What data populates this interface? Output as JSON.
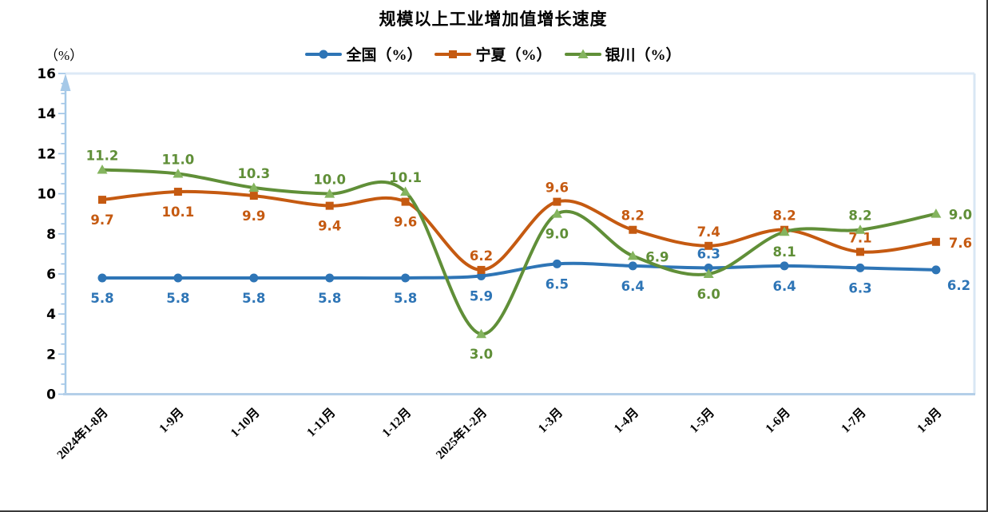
{
  "chart_data": {
    "type": "line",
    "title": "规模以上工业增加值增长速度",
    "legend_position": "top",
    "grid": false,
    "smooth_lines": true,
    "axis_color": "#9DC3E6",
    "plot_border_color": "#DDE9F6",
    "categories": [
      "2024年1-8月",
      "1-9月",
      "1-10月",
      "1-11月",
      "1-12月",
      "2025年1-2月",
      "1-3月",
      "1-4月",
      "1-5月",
      "1-6月",
      "1-7月",
      "1-8月"
    ],
    "y_axis": {
      "unit_label": "（%）",
      "min": 0,
      "max": 16,
      "major_step": 2,
      "minor_step": 0.5,
      "tick_labels": [
        "0",
        "2",
        "4",
        "6",
        "8",
        "10",
        "12",
        "14",
        "16"
      ]
    },
    "series": [
      {
        "name": "全国（%）",
        "color": "#2E75B6",
        "marker": "circle",
        "marker_color": "#2E75B6",
        "values": [
          5.8,
          5.8,
          5.8,
          5.8,
          5.8,
          5.9,
          6.5,
          6.4,
          6.3,
          6.4,
          6.3,
          6.2
        ],
        "label_positions": [
          "below",
          "below",
          "below",
          "below",
          "below",
          "below",
          "below",
          "below",
          "above",
          "below",
          "below",
          "below-right"
        ]
      },
      {
        "name": "宁夏（%）",
        "color": "#C55A11",
        "marker": "square",
        "marker_color": "#C55A11",
        "values": [
          9.7,
          10.1,
          9.9,
          9.4,
          9.6,
          6.2,
          9.6,
          8.2,
          7.4,
          8.2,
          7.1,
          7.6
        ],
        "label_positions": [
          "below",
          "below",
          "below",
          "below",
          "below",
          "above",
          "above",
          "above",
          "above",
          "above",
          "above",
          "right"
        ]
      },
      {
        "name": "银川（%）",
        "color": "#608F38",
        "marker": "triangle",
        "marker_color": "#84B45E",
        "values": [
          11.2,
          11.0,
          10.3,
          10.0,
          10.1,
          3.0,
          9.0,
          6.9,
          6.0,
          8.1,
          8.2,
          9.0
        ],
        "label_positions": [
          "above",
          "above",
          "above",
          "above",
          "above",
          "below",
          "below",
          "right",
          "below",
          "below",
          "above",
          "right"
        ]
      }
    ]
  }
}
